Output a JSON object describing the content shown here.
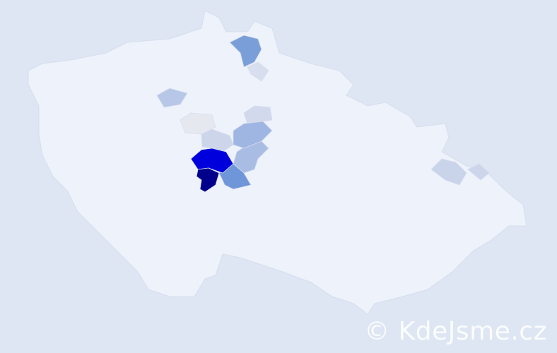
{
  "map": {
    "background_color": "#dde6f2",
    "base_fill": "#eef2fa",
    "border_color": "#d6deef",
    "highlighted_districts": [
      {
        "fill": "#00008b",
        "shape": "A"
      },
      {
        "fill": "#0000dd",
        "shape": "B"
      },
      {
        "fill": "#6f96d8",
        "shape": "C"
      },
      {
        "fill": "#7a9fd8",
        "shape": "D"
      },
      {
        "fill": "#9fb5e2",
        "shape": "E"
      },
      {
        "fill": "#a9bde4",
        "shape": "F"
      },
      {
        "fill": "#b7c7e8",
        "shape": "G"
      },
      {
        "fill": "#c9d3ea",
        "shape": "H"
      },
      {
        "fill": "#cdd5ea",
        "shape": "I"
      },
      {
        "fill": "#d2d9ec",
        "shape": "J"
      },
      {
        "fill": "#d8deee",
        "shape": "K"
      },
      {
        "fill": "#e6e8ef",
        "shape": "L"
      }
    ]
  },
  "watermark": "© KdeJsme.cz"
}
